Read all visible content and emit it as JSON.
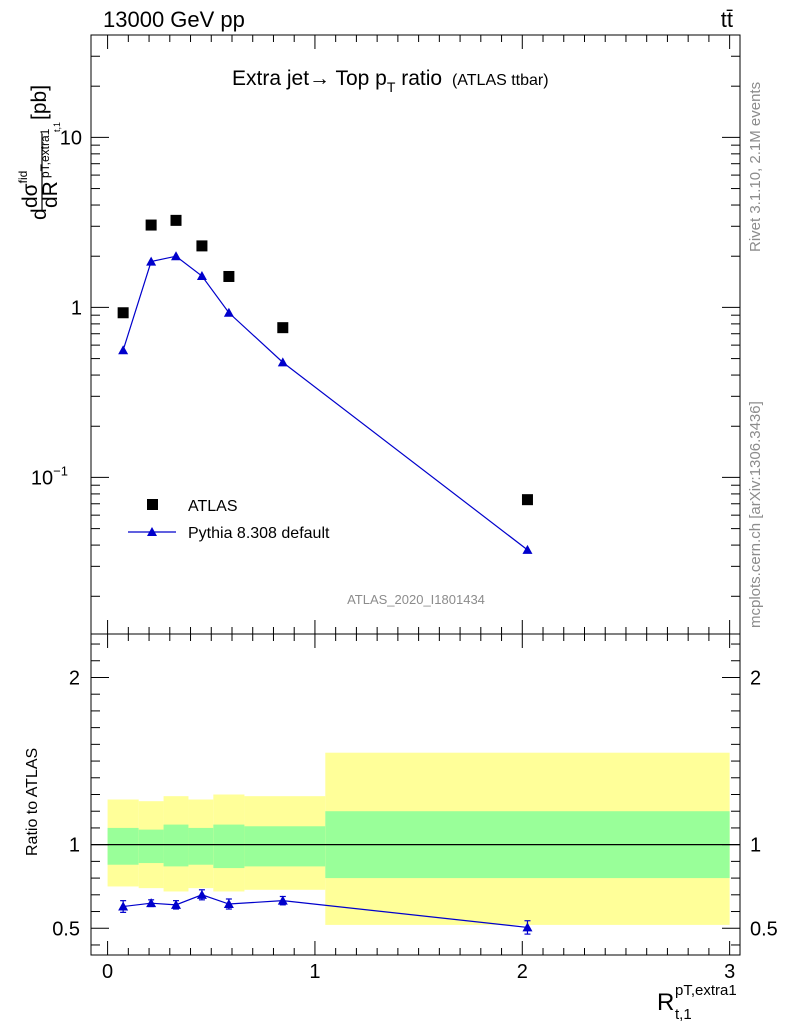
{
  "header": {
    "left": "13000 GeV pp",
    "right": "tt̄"
  },
  "title": {
    "main": "Extra jet→ Top p",
    "sub": "T",
    "after": " ratio",
    "tag": "(ATLAS ttbar)"
  },
  "side_text": {
    "rivet": "Rivet 3.1.10,  2.1M events",
    "mcplots": "mcplots.cern.ch [arXiv:1306.3436]"
  },
  "analysis_label": "ATLAS_2020_I1801434",
  "ylabel_main": {
    "d": "d",
    "sigma": "dσ",
    "fid": "fid",
    "dR": "dR",
    "sub": "pT,extra1",
    "subsub": "t,1",
    "unit": "[pb]"
  },
  "ylabel_ratio": "Ratio to ATLAS",
  "xlabel": {
    "base": "R",
    "sup": "pT,extra1",
    "sub": "t,1"
  },
  "legend": [
    {
      "label": "ATLAS",
      "color": "#000000",
      "marker": "square"
    },
    {
      "label": "Pythia 8.308 default",
      "color": "#0000cc",
      "marker": "triangle"
    }
  ],
  "colors": {
    "data": "#000000",
    "mc": "#0000cc",
    "band_inner": "#99ff99",
    "band_outer": "#ffff99"
  },
  "chart_data": [
    {
      "type": "scatter",
      "panel": "main",
      "yscale": "log",
      "xlim": [
        -0.08,
        3.05
      ],
      "ylim": [
        0.012,
        40
      ],
      "yticks": [
        {
          "value": 0.1,
          "label": "10",
          "exp": "−1"
        },
        {
          "value": 1,
          "label": "1",
          "exp": ""
        },
        {
          "value": 10,
          "label": "10",
          "exp": ""
        }
      ],
      "series": [
        {
          "name": "ATLAS",
          "x": [
            0.075,
            0.21,
            0.33,
            0.455,
            0.585,
            0.845,
            2.025
          ],
          "y": [
            0.93,
            3.05,
            3.25,
            2.3,
            1.52,
            0.76,
            0.074
          ]
        },
        {
          "name": "Pythia 8.308 default",
          "x": [
            0.075,
            0.21,
            0.33,
            0.455,
            0.585,
            0.845,
            2.025
          ],
          "y": [
            0.56,
            1.86,
            2.0,
            1.53,
            0.93,
            0.475,
            0.0375
          ]
        }
      ]
    },
    {
      "type": "line",
      "panel": "ratio",
      "xlim": [
        -0.08,
        3.05
      ],
      "ylim": [
        0.34,
        2.26
      ],
      "yticks": [
        0.5,
        1,
        2
      ],
      "xticks": [
        0,
        1,
        2,
        3
      ],
      "bins": [
        [
          0,
          0.15
        ],
        [
          0.15,
          0.27
        ],
        [
          0.27,
          0.39
        ],
        [
          0.39,
          0.51
        ],
        [
          0.51,
          0.66
        ],
        [
          0.66,
          1.05
        ],
        [
          1.05,
          3.0
        ]
      ],
      "band_inner": [
        [
          0.88,
          1.1
        ],
        [
          0.89,
          1.09
        ],
        [
          0.87,
          1.12
        ],
        [
          0.88,
          1.1
        ],
        [
          0.86,
          1.12
        ],
        [
          0.87,
          1.11
        ],
        [
          0.8,
          1.2
        ]
      ],
      "band_outer": [
        [
          0.75,
          1.27
        ],
        [
          0.74,
          1.26
        ],
        [
          0.72,
          1.29
        ],
        [
          0.74,
          1.27
        ],
        [
          0.72,
          1.3
        ],
        [
          0.73,
          1.29
        ],
        [
          0.52,
          1.55
        ]
      ],
      "series": [
        {
          "name": "Pythia 8.308 default",
          "x": [
            0.075,
            0.21,
            0.33,
            0.455,
            0.585,
            0.845,
            2.025
          ],
          "y": [
            0.63,
            0.65,
            0.64,
            0.7,
            0.645,
            0.665,
            0.505
          ],
          "err": [
            0.035,
            0.02,
            0.025,
            0.03,
            0.03,
            0.025,
            0.04
          ]
        }
      ]
    }
  ]
}
